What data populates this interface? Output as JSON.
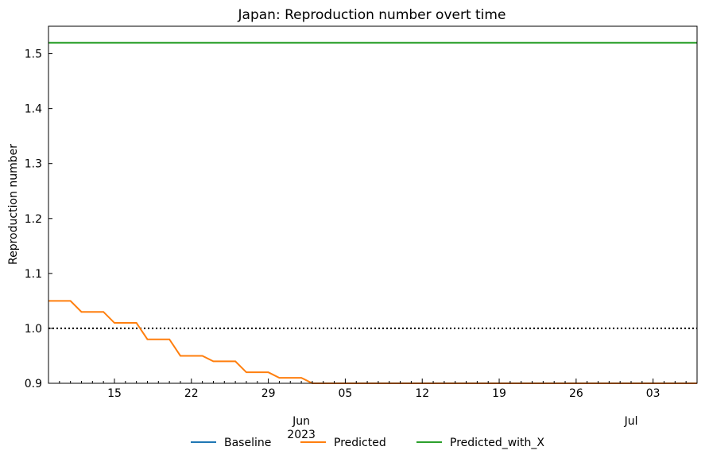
{
  "chart_data": {
    "type": "line",
    "title": "Japan: Reproduction number overt time",
    "ylabel": "Reproduction number",
    "xlim": [
      "2023-05-09",
      "2023-07-07"
    ],
    "ylim": [
      0.9,
      1.55
    ],
    "yticks": [
      0.9,
      1.0,
      1.1,
      1.2,
      1.3,
      1.4,
      1.5
    ],
    "ytick_labels": [
      "0.9",
      "1.0",
      "1.1",
      "1.2",
      "1.3",
      "1.4",
      "1.5"
    ],
    "xticks_major": [
      {
        "date": "2023-05-15",
        "label": "15"
      },
      {
        "date": "2023-05-22",
        "label": "22"
      },
      {
        "date": "2023-05-29",
        "label": "29"
      },
      {
        "date": "2023-06-05",
        "label": "05"
      },
      {
        "date": "2023-06-12",
        "label": "12"
      },
      {
        "date": "2023-06-19",
        "label": "19"
      },
      {
        "date": "2023-06-26",
        "label": "26"
      },
      {
        "date": "2023-07-03",
        "label": "03"
      }
    ],
    "month_labels": [
      {
        "date": "2023-06-01",
        "label": "Jun",
        "year": "2023"
      },
      {
        "date": "2023-07-01",
        "label": "Jul",
        "year": ""
      }
    ],
    "reference_line": {
      "y": 1.0,
      "style": "dotted",
      "color": "#000000"
    },
    "legend_position": "bottom-center",
    "series": [
      {
        "name": "Baseline",
        "color": "#1f77b4",
        "points": []
      },
      {
        "name": "Predicted",
        "color": "#ff7f0e",
        "points": [
          [
            "2023-05-09",
            1.05
          ],
          [
            "2023-05-11",
            1.05
          ],
          [
            "2023-05-12",
            1.03
          ],
          [
            "2023-05-14",
            1.03
          ],
          [
            "2023-05-15",
            1.01
          ],
          [
            "2023-05-17",
            1.01
          ],
          [
            "2023-05-18",
            0.98
          ],
          [
            "2023-05-20",
            0.98
          ],
          [
            "2023-05-21",
            0.95
          ],
          [
            "2023-05-23",
            0.95
          ],
          [
            "2023-05-24",
            0.94
          ],
          [
            "2023-05-26",
            0.94
          ],
          [
            "2023-05-27",
            0.92
          ],
          [
            "2023-05-29",
            0.92
          ],
          [
            "2023-05-30",
            0.91
          ],
          [
            "2023-06-01",
            0.91
          ],
          [
            "2023-06-02",
            0.9
          ],
          [
            "2023-07-07",
            0.9
          ]
        ]
      },
      {
        "name": "Predicted_with_X",
        "color": "#2ca02c",
        "points": [
          [
            "2023-05-09",
            1.52
          ],
          [
            "2023-07-07",
            1.52
          ]
        ]
      }
    ]
  }
}
